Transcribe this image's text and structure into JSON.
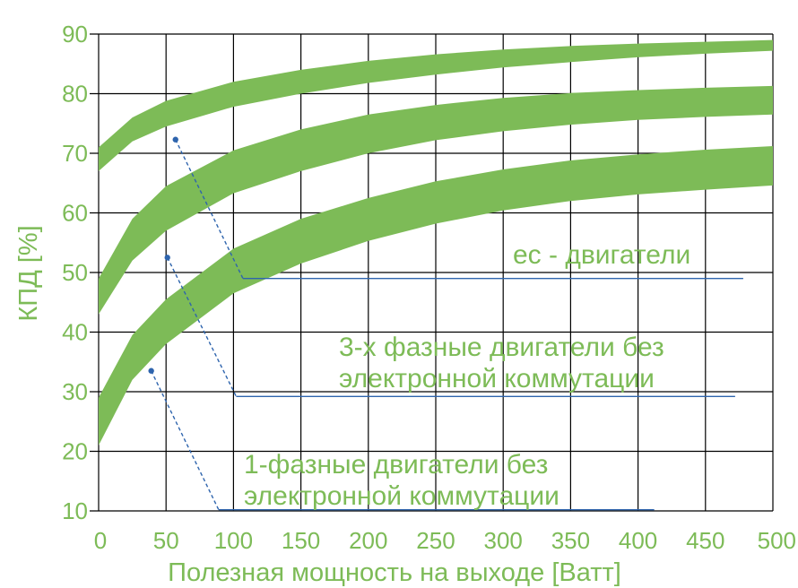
{
  "chart_data": {
    "type": "area",
    "ylabel": "КПД  [%]",
    "xlabel": "Полезная мощность на выходе [Ватт]",
    "xlim": [
      0,
      500
    ],
    "ylim": [
      10,
      90
    ],
    "x_ticks": [
      0,
      50,
      100,
      150,
      200,
      250,
      300,
      350,
      400,
      450,
      500
    ],
    "y_ticks": [
      10,
      20,
      30,
      40,
      50,
      60,
      70,
      80,
      90
    ],
    "grid": true,
    "band_color": "#7dbb57",
    "leader_color": "#2e64ad",
    "series": [
      {
        "x": [
          0,
          25,
          50,
          100,
          150,
          200,
          250,
          300,
          350,
          400,
          450,
          500
        ],
        "lower": [
          67,
          72,
          74.5,
          77.8,
          80,
          81.8,
          83.2,
          84.4,
          85.3,
          86.1,
          86.7,
          87.2
        ],
        "upper": [
          71,
          76,
          78.8,
          82,
          84,
          85.5,
          86.6,
          87.4,
          88.0,
          88.4,
          88.7,
          89.0
        ],
        "label_lines": [
          "ec - двигатели"
        ]
      },
      {
        "x": [
          0,
          25,
          50,
          100,
          150,
          200,
          250,
          300,
          350,
          400,
          450,
          500
        ],
        "lower": [
          43,
          52,
          57,
          63.3,
          67,
          70,
          72.2,
          73.7,
          74.8,
          75.6,
          76.1,
          76.5
        ],
        "upper": [
          49,
          59,
          64.5,
          70.5,
          74,
          76.5,
          78.1,
          79.3,
          80.1,
          80.6,
          81.0,
          81.3
        ],
        "label_lines": [
          "3-х фазные двигатели без",
          "электронной коммутации"
        ]
      },
      {
        "x": [
          0,
          25,
          50,
          100,
          150,
          200,
          250,
          300,
          350,
          400,
          450,
          500
        ],
        "lower": [
          21,
          32,
          38,
          46.5,
          51.5,
          55.3,
          58.2,
          60.4,
          62.0,
          63.1,
          63.9,
          64.6
        ],
        "upper": [
          29,
          39.5,
          45.5,
          54,
          59,
          62.5,
          65.3,
          67.3,
          68.8,
          69.8,
          70.6,
          71.2
        ],
        "label_lines": [
          "1-фазные двигатели без",
          "электронной коммутации"
        ]
      }
    ]
  }
}
